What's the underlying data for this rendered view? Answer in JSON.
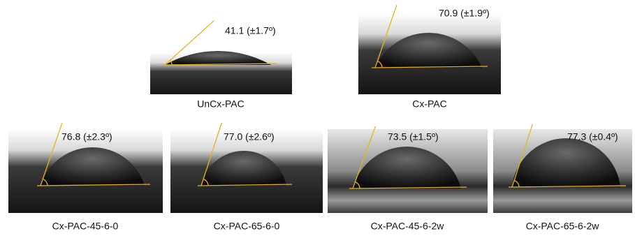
{
  "panels": [
    {
      "label": "UnCx-PAC",
      "angle": "41.1 (±1.7º)"
    },
    {
      "label": "Cx-PAC",
      "angle": "70.9 (±1.9º)"
    },
    {
      "label": "Cx-PAC-45-6-0",
      "angle": "76.8 (±2.3º)"
    },
    {
      "label": "Cx-PAC-65-6-0",
      "angle": "77.0 (±2.6º)"
    },
    {
      "label": "Cx-PAC-45-6-2w",
      "angle": "73.5 (±1.5º)"
    },
    {
      "label": "Cx-PAC-65-6-2w",
      "angle": "77.3 (±0.4º)"
    }
  ]
}
